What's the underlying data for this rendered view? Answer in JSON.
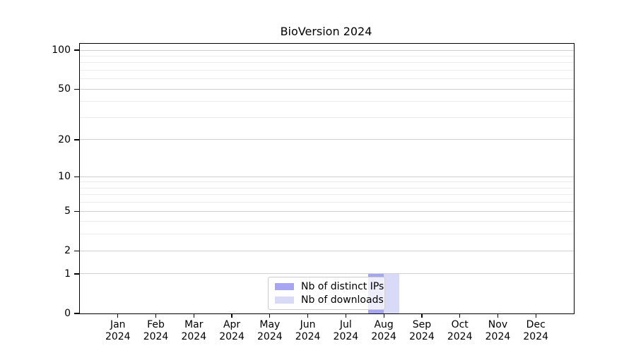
{
  "title": "BioVersion 2024",
  "chart_data": {
    "type": "bar",
    "title": "BioVersion 2024",
    "x_months": [
      "Jan",
      "Feb",
      "Mar",
      "Apr",
      "May",
      "Jun",
      "Jul",
      "Aug",
      "Sep",
      "Oct",
      "Nov",
      "Dec"
    ],
    "x_year": "2024",
    "series": [
      {
        "name": "Nb of distinct IPs",
        "color": "#a5a5f1",
        "values": [
          0,
          0,
          0,
          0,
          0,
          0,
          0,
          1,
          0,
          0,
          0,
          0
        ]
      },
      {
        "name": "Nb of downloads",
        "color": "#d9d9f8",
        "values": [
          0,
          0,
          0,
          0,
          0,
          0,
          0,
          1,
          0,
          0,
          0,
          0
        ]
      }
    ],
    "yscale": "log1p",
    "ylim": [
      0,
      101
    ],
    "y_major_ticks": [
      0,
      1,
      2,
      5,
      10,
      20,
      50,
      100
    ],
    "y_minor_ticks": [
      3,
      4,
      6,
      7,
      8,
      9,
      30,
      40,
      60,
      70,
      80,
      90
    ],
    "grid": "horizontal",
    "legend": {
      "position": "lower center",
      "labels": [
        "Nb of distinct IPs",
        "Nb of downloads"
      ]
    }
  },
  "colors": {
    "axis": "#000000",
    "grid_major": "#cfcfcf",
    "grid_minor": "#ececec",
    "background": "#ffffff",
    "legend_border": "#cccccc"
  }
}
